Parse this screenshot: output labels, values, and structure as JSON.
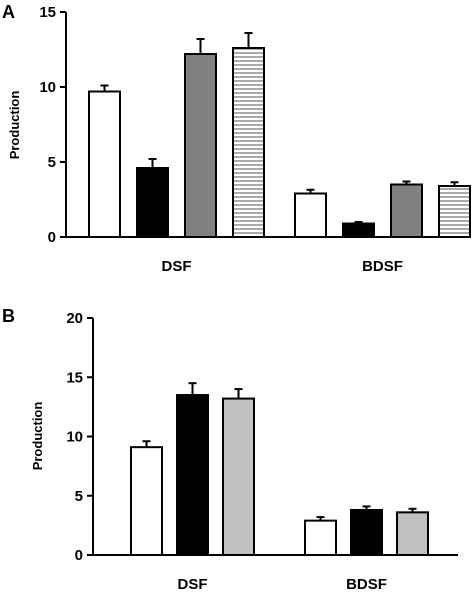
{
  "chart_data": [
    {
      "panel": "A",
      "type": "bar",
      "ylabel": "Production",
      "ylim": [
        0,
        15
      ],
      "yticks": [
        0,
        5,
        10,
        15
      ],
      "categories": [
        "DSF",
        "BDSF"
      ],
      "series": [
        {
          "values": [
            9.7,
            2.9
          ],
          "errors": [
            0.4,
            0.25
          ],
          "color": "#ffffff",
          "pattern": "none"
        },
        {
          "values": [
            4.6,
            0.9
          ],
          "errors": [
            0.6,
            0.1
          ],
          "color": "#000000",
          "pattern": "none"
        },
        {
          "values": [
            12.2,
            3.5
          ],
          "errors": [
            1.0,
            0.2
          ],
          "color": "#808080",
          "pattern": "none"
        },
        {
          "values": [
            12.6,
            3.4
          ],
          "errors": [
            1.0,
            0.25
          ],
          "color": "#ffffff",
          "pattern": "horizontal-lines"
        }
      ]
    },
    {
      "panel": "B",
      "type": "bar",
      "ylabel": "Production",
      "ylim": [
        0,
        20
      ],
      "yticks": [
        0,
        5,
        10,
        15,
        20
      ],
      "categories": [
        "DSF",
        "BDSF"
      ],
      "series": [
        {
          "values": [
            9.1,
            2.9
          ],
          "errors": [
            0.5,
            0.3
          ],
          "color": "#ffffff",
          "pattern": "none"
        },
        {
          "values": [
            13.5,
            3.8
          ],
          "errors": [
            1.0,
            0.3
          ],
          "color": "#000000",
          "pattern": "none"
        },
        {
          "values": [
            13.2,
            3.6
          ],
          "errors": [
            0.8,
            0.3
          ],
          "color": "#c0c0c0",
          "pattern": "none"
        }
      ]
    }
  ]
}
